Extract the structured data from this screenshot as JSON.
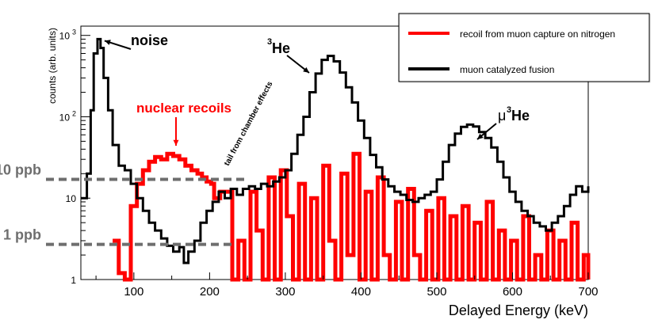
{
  "chart_data": {
    "type": "line",
    "xlabel": "Delayed Energy (keV)",
    "ylabel": "counts (arb. units)",
    "xlim": [
      30,
      700
    ],
    "ylim": [
      1,
      1300
    ],
    "yscale": "log",
    "xticks": [
      100,
      200,
      300,
      400,
      500,
      600,
      700
    ],
    "yticks": [
      {
        "value": 1,
        "label": "1"
      },
      {
        "value": 10,
        "label": "10"
      },
      {
        "value": 100,
        "label": "10",
        "exp": "2"
      },
      {
        "value": 1000,
        "label": "10",
        "exp": "3"
      }
    ],
    "legend": {
      "position": "top-right",
      "entries": [
        {
          "name": "recoil from muon capture on nitrogen",
          "color": "#ff0000"
        },
        {
          "name": "muon catalyzed fusion",
          "color": "#000000"
        }
      ]
    },
    "series": [
      {
        "name": "muon catalyzed fusion",
        "color": "#000000",
        "points": [
          [
            30,
            10
          ],
          [
            38,
            20
          ],
          [
            43,
            120
          ],
          [
            47,
            600
          ],
          [
            52,
            900
          ],
          [
            56,
            700
          ],
          [
            60,
            300
          ],
          [
            66,
            120
          ],
          [
            72,
            45
          ],
          [
            80,
            25
          ],
          [
            88,
            22
          ],
          [
            96,
            15
          ],
          [
            104,
            10
          ],
          [
            112,
            7
          ],
          [
            120,
            5
          ],
          [
            128,
            4
          ],
          [
            136,
            3.2
          ],
          [
            144,
            2.6
          ],
          [
            152,
            2.2
          ],
          [
            160,
            2.5
          ],
          [
            166,
            1.6
          ],
          [
            172,
            2.2
          ],
          [
            180,
            3
          ],
          [
            188,
            5
          ],
          [
            196,
            7
          ],
          [
            204,
            9
          ],
          [
            212,
            12
          ],
          [
            220,
            10
          ],
          [
            228,
            13
          ],
          [
            236,
            11
          ],
          [
            244,
            13
          ],
          [
            252,
            14
          ],
          [
            260,
            13
          ],
          [
            268,
            15
          ],
          [
            276,
            14
          ],
          [
            284,
            16
          ],
          [
            292,
            18
          ],
          [
            300,
            22
          ],
          [
            308,
            35
          ],
          [
            316,
            60
          ],
          [
            324,
            100
          ],
          [
            332,
            200
          ],
          [
            340,
            340
          ],
          [
            348,
            500
          ],
          [
            356,
            560
          ],
          [
            364,
            480
          ],
          [
            372,
            350
          ],
          [
            380,
            230
          ],
          [
            388,
            150
          ],
          [
            396,
            90
          ],
          [
            404,
            55
          ],
          [
            412,
            34
          ],
          [
            420,
            24
          ],
          [
            428,
            17
          ],
          [
            436,
            14
          ],
          [
            444,
            12
          ],
          [
            452,
            11
          ],
          [
            460,
            9.5
          ],
          [
            468,
            9
          ],
          [
            476,
            10
          ],
          [
            484,
            11
          ],
          [
            492,
            12
          ],
          [
            500,
            17
          ],
          [
            508,
            28
          ],
          [
            516,
            45
          ],
          [
            524,
            62
          ],
          [
            532,
            75
          ],
          [
            540,
            80
          ],
          [
            548,
            76
          ],
          [
            556,
            65
          ],
          [
            564,
            55
          ],
          [
            572,
            42
          ],
          [
            580,
            28
          ],
          [
            588,
            18
          ],
          [
            596,
            12
          ],
          [
            604,
            9
          ],
          [
            612,
            7
          ],
          [
            620,
            6
          ],
          [
            628,
            5
          ],
          [
            636,
            4.5
          ],
          [
            644,
            4
          ],
          [
            652,
            5
          ],
          [
            660,
            6
          ],
          [
            668,
            8
          ],
          [
            676,
            11
          ],
          [
            684,
            14
          ],
          [
            692,
            12
          ],
          [
            700,
            14
          ]
        ]
      },
      {
        "name": "recoil from muon capture on nitrogen",
        "color": "#ff0000",
        "points": [
          [
            72,
            3
          ],
          [
            80,
            1.2
          ],
          [
            88,
            1
          ],
          [
            96,
            8
          ],
          [
            104,
            15
          ],
          [
            112,
            22
          ],
          [
            120,
            28
          ],
          [
            128,
            32
          ],
          [
            136,
            30
          ],
          [
            144,
            35
          ],
          [
            152,
            33
          ],
          [
            160,
            30
          ],
          [
            168,
            25
          ],
          [
            176,
            22
          ],
          [
            184,
            20
          ],
          [
            190,
            18
          ],
          [
            196,
            16
          ],
          [
            202,
            15
          ],
          [
            206,
            10
          ],
          [
            214,
            12
          ],
          [
            230,
            1
          ],
          [
            238,
            3
          ],
          [
            246,
            1
          ],
          [
            254,
            12
          ],
          [
            262,
            4
          ],
          [
            270,
            1
          ],
          [
            278,
            18
          ],
          [
            286,
            1
          ],
          [
            294,
            22
          ],
          [
            302,
            6
          ],
          [
            310,
            1
          ],
          [
            318,
            15
          ],
          [
            326,
            1
          ],
          [
            334,
            10
          ],
          [
            342,
            1
          ],
          [
            350,
            25
          ],
          [
            358,
            3
          ],
          [
            366,
            1
          ],
          [
            374,
            20
          ],
          [
            382,
            2
          ],
          [
            390,
            35
          ],
          [
            398,
            1
          ],
          [
            406,
            12
          ],
          [
            414,
            1
          ],
          [
            422,
            18
          ],
          [
            430,
            2
          ],
          [
            438,
            1
          ],
          [
            446,
            9
          ],
          [
            454,
            1
          ],
          [
            462,
            13
          ],
          [
            470,
            2
          ],
          [
            478,
            1
          ],
          [
            486,
            7
          ],
          [
            494,
            1
          ],
          [
            502,
            10
          ],
          [
            510,
            1
          ],
          [
            518,
            6
          ],
          [
            526,
            1
          ],
          [
            534,
            8
          ],
          [
            542,
            1
          ],
          [
            550,
            5
          ],
          [
            558,
            1
          ],
          [
            566,
            9
          ],
          [
            574,
            1
          ],
          [
            582,
            4
          ],
          [
            590,
            1
          ],
          [
            598,
            3
          ],
          [
            606,
            1
          ],
          [
            614,
            6
          ],
          [
            622,
            1
          ],
          [
            630,
            2
          ],
          [
            638,
            1
          ],
          [
            646,
            4
          ],
          [
            654,
            1
          ],
          [
            662,
            3
          ],
          [
            670,
            1
          ],
          [
            678,
            5
          ],
          [
            686,
            1
          ],
          [
            694,
            2
          ],
          [
            700,
            1
          ]
        ]
      }
    ],
    "reference_lines": [
      {
        "label": "10 ppb",
        "y": 17,
        "x_end": 250
      },
      {
        "label": "1 ppb",
        "y": 2.7,
        "x_end": 230
      }
    ],
    "annotations": [
      {
        "text": "noise",
        "target": [
          55,
          900
        ],
        "color": "#000000"
      },
      {
        "text": "nuclear recoils",
        "target": [
          150,
          50
        ],
        "color": "#ff0000"
      },
      {
        "text": "He",
        "sup": "3",
        "target": [
          350,
          560
        ],
        "color": "#000000"
      },
      {
        "text": "μ",
        "sup": "3",
        "suffix": "He",
        "target": [
          560,
          70
        ],
        "color": "#000000"
      },
      {
        "text": "tail from chamber effects",
        "color": "#000000"
      }
    ]
  }
}
